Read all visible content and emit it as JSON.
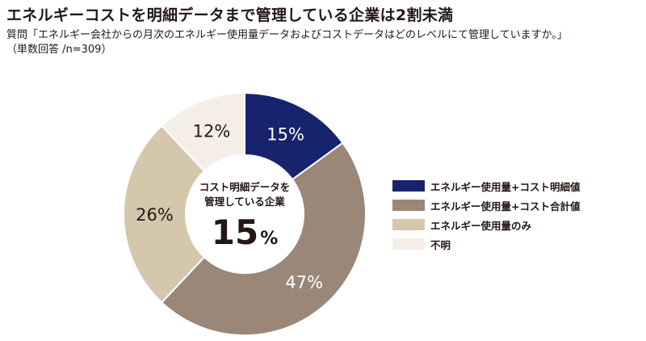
{
  "header": {
    "title": "エネルギーコストを明細データまで管理している企業は2割未満",
    "question": "質問「エネルギー会社からの月次のエネルギー使用量データおよびコストデータはどのレベルにて管理していますか。」",
    "note": "（単数回答 /n=309）"
  },
  "chart_data": {
    "type": "pie",
    "subtype": "donut",
    "categories": [
      "エネルギー使用量+コスト明細値",
      "エネルギー使用量+コスト合計値",
      "エネルギー使用量のみ",
      "不明"
    ],
    "values": [
      15,
      47,
      26,
      12
    ],
    "value_labels": [
      "15%",
      "47%",
      "26%",
      "12%"
    ],
    "colors": [
      "#17236d",
      "#9b8777",
      "#d5c7ac",
      "#f4eee6"
    ],
    "label_colors": [
      "#ffffff",
      "#ffffff",
      "#231815",
      "#231815"
    ],
    "legend_position": "right",
    "center_text": {
      "line1": "コスト明細データを",
      "line2": "管理している企業",
      "value": "15",
      "unit": "%"
    }
  }
}
